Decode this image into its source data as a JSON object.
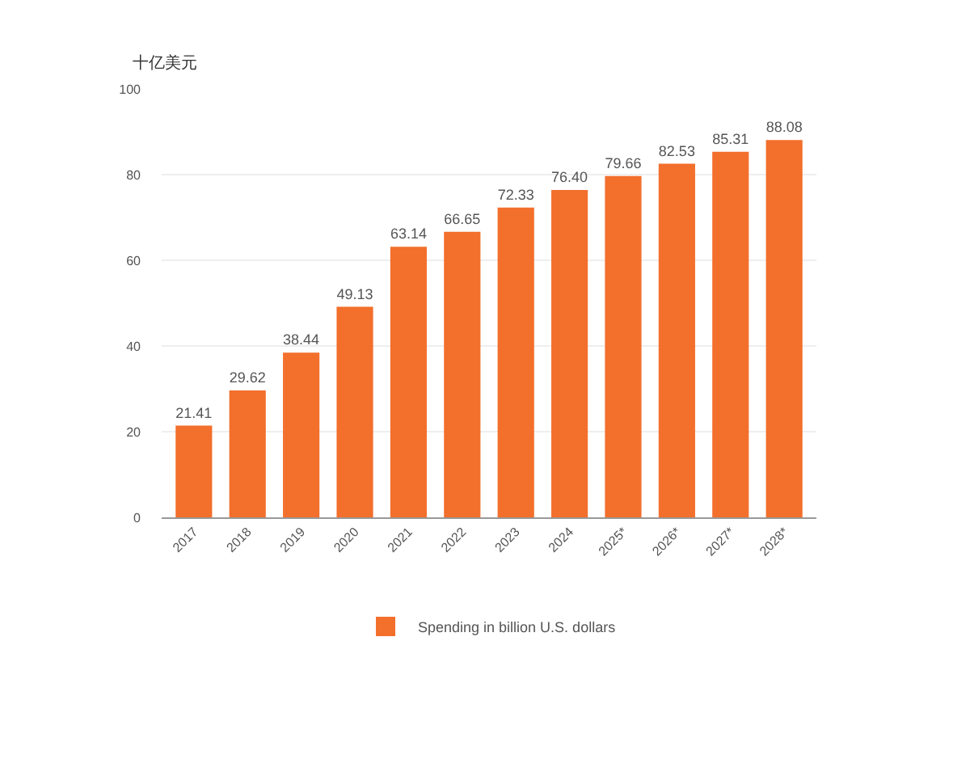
{
  "chart_data": {
    "type": "bar",
    "ylabel": "十亿美元",
    "categories": [
      "2017",
      "2018",
      "2019",
      "2020",
      "2021",
      "2022",
      "2023",
      "2024",
      "2025*",
      "2026*",
      "2027*",
      "2028*"
    ],
    "series": [
      {
        "name": "Spending in billion U.S. dollars",
        "color": "#f36f2c",
        "values": [
          21.41,
          29.62,
          38.44,
          49.13,
          63.14,
          66.65,
          72.33,
          76.4,
          79.66,
          82.53,
          85.31,
          88.08
        ],
        "value_labels": [
          "21.41",
          "29.62",
          "38.44",
          "49.13",
          "63.14",
          "66.65",
          "72.33",
          "76.40",
          "79.66",
          "82.53",
          "85.31",
          "88.08"
        ]
      }
    ],
    "ylim": [
      0,
      100
    ],
    "yticks": [
      0,
      20,
      40,
      60,
      80,
      100
    ],
    "grid": "y",
    "legend": "bottom"
  }
}
